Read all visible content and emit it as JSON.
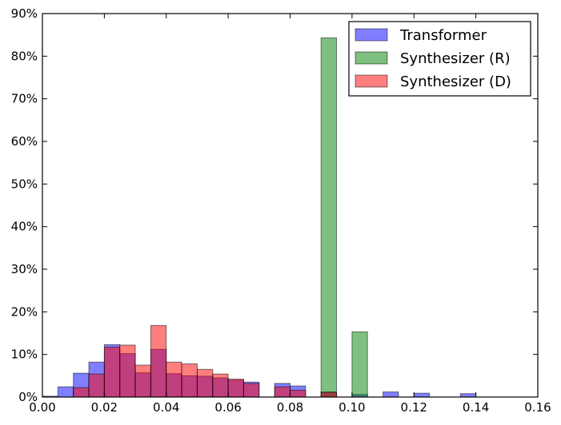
{
  "chart_data": {
    "type": "bar",
    "title": "",
    "xlabel": "",
    "ylabel": "",
    "xlim": [
      0.0,
      0.16
    ],
    "ylim": [
      0,
      90
    ],
    "bin_width": 0.005,
    "x_ticks": [
      "0.00",
      "0.02",
      "0.04",
      "0.06",
      "0.08",
      "0.10",
      "0.12",
      "0.14",
      "0.16"
    ],
    "x_tick_values": [
      0.0,
      0.02,
      0.04,
      0.06,
      0.08,
      0.1,
      0.12,
      0.14,
      0.16
    ],
    "y_ticks": [
      "0%",
      "10%",
      "20%",
      "30%",
      "40%",
      "50%",
      "60%",
      "70%",
      "80%",
      "90%"
    ],
    "y_tick_values": [
      0,
      10,
      20,
      30,
      40,
      50,
      60,
      70,
      80,
      90
    ],
    "grid": false,
    "legend_position": "top-right",
    "series": [
      {
        "name": "Transformer",
        "color": "#0000ff",
        "bins": [
          {
            "x": 0.0,
            "value": 0.2
          },
          {
            "x": 0.005,
            "value": 2.4
          },
          {
            "x": 0.01,
            "value": 5.6
          },
          {
            "x": 0.015,
            "value": 8.2
          },
          {
            "x": 0.02,
            "value": 12.3
          },
          {
            "x": 0.025,
            "value": 10.2
          },
          {
            "x": 0.03,
            "value": 5.7
          },
          {
            "x": 0.035,
            "value": 11.2
          },
          {
            "x": 0.04,
            "value": 5.5
          },
          {
            "x": 0.045,
            "value": 5.0
          },
          {
            "x": 0.05,
            "value": 4.9
          },
          {
            "x": 0.055,
            "value": 4.5
          },
          {
            "x": 0.06,
            "value": 4.0
          },
          {
            "x": 0.065,
            "value": 3.5
          },
          {
            "x": 0.075,
            "value": 3.2
          },
          {
            "x": 0.08,
            "value": 2.6
          },
          {
            "x": 0.09,
            "value": 1.2
          },
          {
            "x": 0.1,
            "value": 0.6
          },
          {
            "x": 0.11,
            "value": 1.2
          },
          {
            "x": 0.12,
            "value": 0.9
          },
          {
            "x": 0.135,
            "value": 0.8
          }
        ]
      },
      {
        "name": "Synthesizer (R)",
        "color": "#008000",
        "bins": [
          {
            "x": 0.09,
            "value": 84.3
          },
          {
            "x": 0.1,
            "value": 15.3
          }
        ]
      },
      {
        "name": "Synthesizer (D)",
        "color": "#ff0000",
        "bins": [
          {
            "x": 0.01,
            "value": 2.2
          },
          {
            "x": 0.015,
            "value": 5.4
          },
          {
            "x": 0.02,
            "value": 11.7
          },
          {
            "x": 0.025,
            "value": 12.2
          },
          {
            "x": 0.03,
            "value": 7.5
          },
          {
            "x": 0.035,
            "value": 16.8
          },
          {
            "x": 0.04,
            "value": 8.2
          },
          {
            "x": 0.045,
            "value": 7.8
          },
          {
            "x": 0.05,
            "value": 6.5
          },
          {
            "x": 0.055,
            "value": 5.4
          },
          {
            "x": 0.06,
            "value": 4.2
          },
          {
            "x": 0.065,
            "value": 3.2
          },
          {
            "x": 0.075,
            "value": 2.4
          },
          {
            "x": 0.08,
            "value": 1.6
          },
          {
            "x": 0.09,
            "value": 1.1
          }
        ]
      }
    ]
  }
}
